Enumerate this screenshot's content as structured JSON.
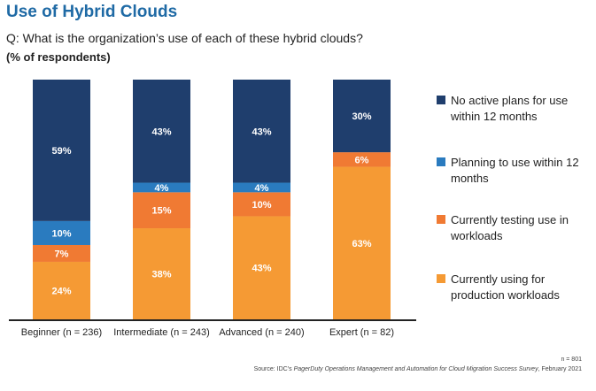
{
  "header": {
    "title": "Use of Hybrid Clouds",
    "question": "Q: What is the organization’s use of each of these hybrid clouds?",
    "units": "(% of respondents)"
  },
  "footer": {
    "n": "n = 801",
    "source_prefix": "Source: IDC’s ",
    "source_title": "PagerDuty Operations Management and Automation for Cloud Migration Success Survey",
    "source_suffix": ", February 2021"
  },
  "colors": {
    "no_plans": "#1f3e6d",
    "planning": "#2a7bbf",
    "testing": "#f07a33",
    "using": "#f59a34",
    "title": "#1f6aa5"
  },
  "chart_data": {
    "type": "bar",
    "stacked": true,
    "title": "Use of Hybrid Clouds",
    "subtitle": "Q: What is the organization’s use of each of these hybrid clouds?",
    "ylabel": "(% of respondents)",
    "xlabel": "",
    "ylim": [
      0,
      100
    ],
    "grid": false,
    "legend_position": "right",
    "categories": [
      "Beginner (n = 236)",
      "Intermediate (n = 243)",
      "Advanced (n = 240)",
      "Expert (n = 82)"
    ],
    "series": [
      {
        "name": "Currently using for production workloads",
        "key": "using",
        "color": "#f59a34",
        "values": [
          24,
          38,
          43,
          63
        ]
      },
      {
        "name": "Currently testing use in workloads",
        "key": "testing",
        "color": "#f07a33",
        "values": [
          7,
          15,
          10,
          6
        ]
      },
      {
        "name": "Planning to use within 12 months",
        "key": "planning",
        "color": "#2a7bbf",
        "values": [
          10,
          4,
          4,
          0
        ]
      },
      {
        "name": "No active plans for use within 12 months",
        "key": "no_plans",
        "color": "#1f3e6d",
        "values": [
          59,
          43,
          43,
          30
        ]
      }
    ]
  },
  "legend": [
    {
      "key": "no_plans",
      "label": "No active plans for use within 12 months"
    },
    {
      "key": "planning",
      "label": "Planning to use within 12 months"
    },
    {
      "key": "testing",
      "label": "Currently testing use in workloads"
    },
    {
      "key": "using",
      "label": "Currently using for production workloads"
    }
  ]
}
